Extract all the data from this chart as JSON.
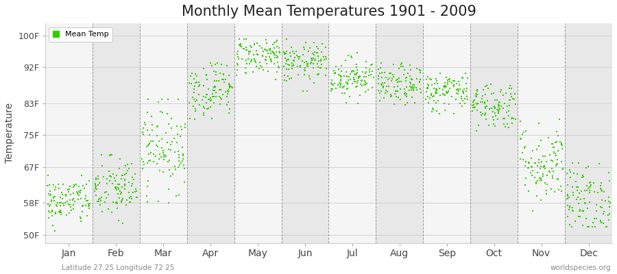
{
  "title": "Monthly Mean Temperatures 1901 - 2009",
  "ylabel": "Temperature",
  "xlabel_labels": [
    "Jan",
    "Feb",
    "Mar",
    "Apr",
    "May",
    "Jun",
    "Jul",
    "Aug",
    "Sep",
    "Oct",
    "Nov",
    "Dec"
  ],
  "footnote_left": "Latitude 27.25 Longitude 72.25",
  "footnote_right": "worldspecies.org",
  "legend_label": "Mean Temp",
  "dot_color": "#33cc00",
  "background_color": "#ffffff",
  "plot_bg_colors": [
    "#f5f5f5",
    "#e8e8e8"
  ],
  "yticks": [
    50,
    58,
    67,
    75,
    83,
    92,
    100
  ],
  "ylim": [
    48,
    103
  ],
  "xlim": [
    0,
    12
  ],
  "title_fontsize": 15,
  "axis_label_fontsize": 10,
  "tick_fontsize": 9,
  "monthly_means": [
    58.5,
    61.5,
    72.0,
    86.5,
    95.0,
    93.0,
    89.5,
    87.5,
    86.0,
    82.5,
    68.0,
    59.0
  ],
  "monthly_stds": [
    3.0,
    4.0,
    5.5,
    3.5,
    2.5,
    2.5,
    2.5,
    2.5,
    2.5,
    3.0,
    5.0,
    4.5
  ],
  "monthly_mins": [
    51,
    52,
    58,
    79,
    89,
    86,
    83,
    81,
    80,
    76,
    56,
    52
  ],
  "monthly_maxs": [
    65,
    70,
    84,
    93,
    99,
    100,
    96,
    93,
    91,
    89,
    79,
    68
  ],
  "n_years": 109
}
